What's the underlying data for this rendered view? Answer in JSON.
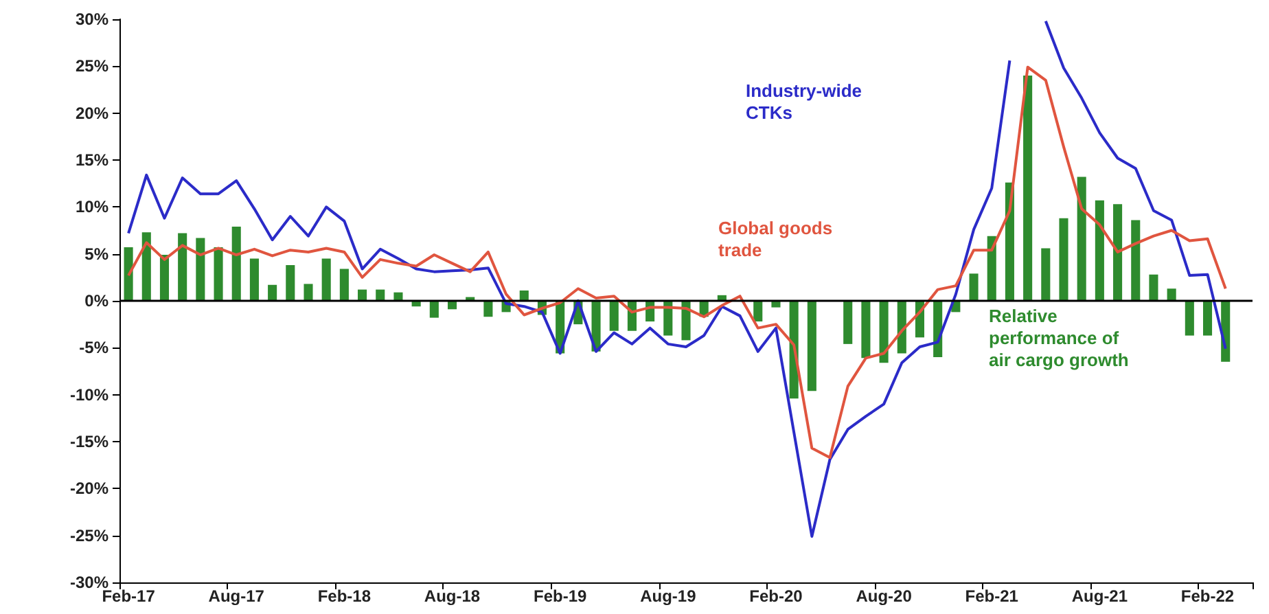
{
  "chart_data": {
    "type": "bar",
    "categories": [
      "Feb-17",
      null,
      null,
      null,
      null,
      null,
      "Aug-17",
      null,
      null,
      null,
      null,
      null,
      "Feb-18",
      null,
      null,
      null,
      null,
      null,
      "Aug-18",
      null,
      null,
      null,
      null,
      null,
      "Feb-19",
      null,
      null,
      null,
      null,
      null,
      "Aug-19",
      null,
      null,
      null,
      null,
      null,
      "Feb-20",
      null,
      null,
      null,
      null,
      null,
      "Aug-20",
      null,
      null,
      null,
      null,
      null,
      "Feb-21",
      null,
      null,
      null,
      null,
      null,
      "Aug-21",
      null,
      null,
      null,
      null,
      null,
      "Feb-22",
      null,
      null
    ],
    "series": [
      {
        "name": "Relative performance of air cargo growth",
        "color": "#2e8b2e",
        "values": [
          5.7,
          7.3,
          4.9,
          7.2,
          6.7,
          5.7,
          7.9,
          4.5,
          1.7,
          3.8,
          1.8,
          4.5,
          3.4,
          1.2,
          1.2,
          0.9,
          -0.6,
          -1.8,
          -0.9,
          0.4,
          -1.7,
          -1.2,
          1.1,
          -1.5,
          -5.6,
          -2.5,
          -5.4,
          -3.2,
          -3.2,
          -2.2,
          -3.7,
          -4.2,
          -1.7,
          0.6,
          null,
          -2.2,
          -0.7,
          -10.4,
          -9.6,
          null,
          -4.6,
          -6.1,
          -6.6,
          -5.6,
          -3.9,
          -6.0,
          -1.2,
          2.9,
          6.9,
          12.6,
          24.0,
          5.6,
          8.8,
          13.2,
          10.7,
          10.3,
          8.6,
          2.8,
          1.3,
          -3.7,
          -3.7,
          -6.5,
          null
        ]
      },
      {
        "name": "Industry-wide CTKs",
        "type": "line",
        "color": "#2b2bc8",
        "values": [
          7.2,
          13.4,
          8.8,
          13.1,
          11.4,
          11.4,
          12.8,
          9.8,
          6.5,
          9.0,
          6.9,
          10.0,
          8.5,
          3.4,
          5.5,
          4.5,
          3.4,
          3.1,
          3.2,
          3.3,
          3.5,
          -0.3,
          -0.6,
          -1.2,
          -5.6,
          0.0,
          -5.4,
          -3.4,
          -4.6,
          -2.9,
          -4.6,
          -4.9,
          -3.7,
          -0.6,
          -1.6,
          -5.4,
          -2.9,
          -14.0,
          -25.1,
          -16.9,
          -13.7,
          -12.3,
          -11.0,
          -6.6,
          -4.9,
          -4.4,
          0.7,
          7.6,
          12.0,
          25.6,
          null,
          29.8,
          24.8,
          21.6,
          17.9,
          15.2,
          14.1,
          9.6,
          8.6,
          2.7,
          2.8,
          -5.1,
          null
        ]
      },
      {
        "name": "Global goods trade",
        "type": "line",
        "color": "#e0553f",
        "values": [
          2.7,
          6.2,
          4.4,
          5.9,
          4.9,
          5.6,
          4.9,
          5.5,
          4.8,
          5.4,
          5.2,
          5.6,
          5.2,
          2.5,
          4.4,
          4.0,
          3.7,
          4.9,
          4.0,
          3.1,
          5.2,
          0.7,
          -1.5,
          -0.8,
          -0.2,
          1.3,
          0.3,
          0.5,
          -1.2,
          -0.7,
          -0.7,
          -0.8,
          -1.7,
          -0.5,
          0.5,
          -2.9,
          -2.5,
          -4.7,
          -15.7,
          -16.7,
          -9.1,
          -6.1,
          -5.6,
          -3.2,
          -1.2,
          1.2,
          1.6,
          5.4,
          5.4,
          9.6,
          24.9,
          23.5,
          16.4,
          9.8,
          8.1,
          5.2,
          6.1,
          6.9,
          7.5,
          6.4,
          6.6,
          1.3,
          null
        ]
      }
    ],
    "ylim": [
      -30,
      30
    ],
    "yticks": [
      {
        "value": -30,
        "label": "-30%"
      },
      {
        "value": -25,
        "label": "-25%"
      },
      {
        "value": -20,
        "label": "-20%"
      },
      {
        "value": -15,
        "label": "-15%"
      },
      {
        "value": -10,
        "label": "-10%"
      },
      {
        "value": -5,
        "label": "-5%"
      },
      {
        "value": 0,
        "label": "0%"
      },
      {
        "value": 5,
        "label": "5%"
      },
      {
        "value": 10,
        "label": "10%"
      },
      {
        "value": 15,
        "label": "15%"
      },
      {
        "value": 20,
        "label": "20%"
      },
      {
        "value": 25,
        "label": "25%"
      },
      {
        "value": 30,
        "label": "30%"
      }
    ],
    "ref_lines": [
      {
        "axis": "y",
        "value": 0,
        "color": "#000000"
      }
    ],
    "grid": false,
    "legend": false,
    "marker": "none",
    "line_style": "solid"
  }
}
